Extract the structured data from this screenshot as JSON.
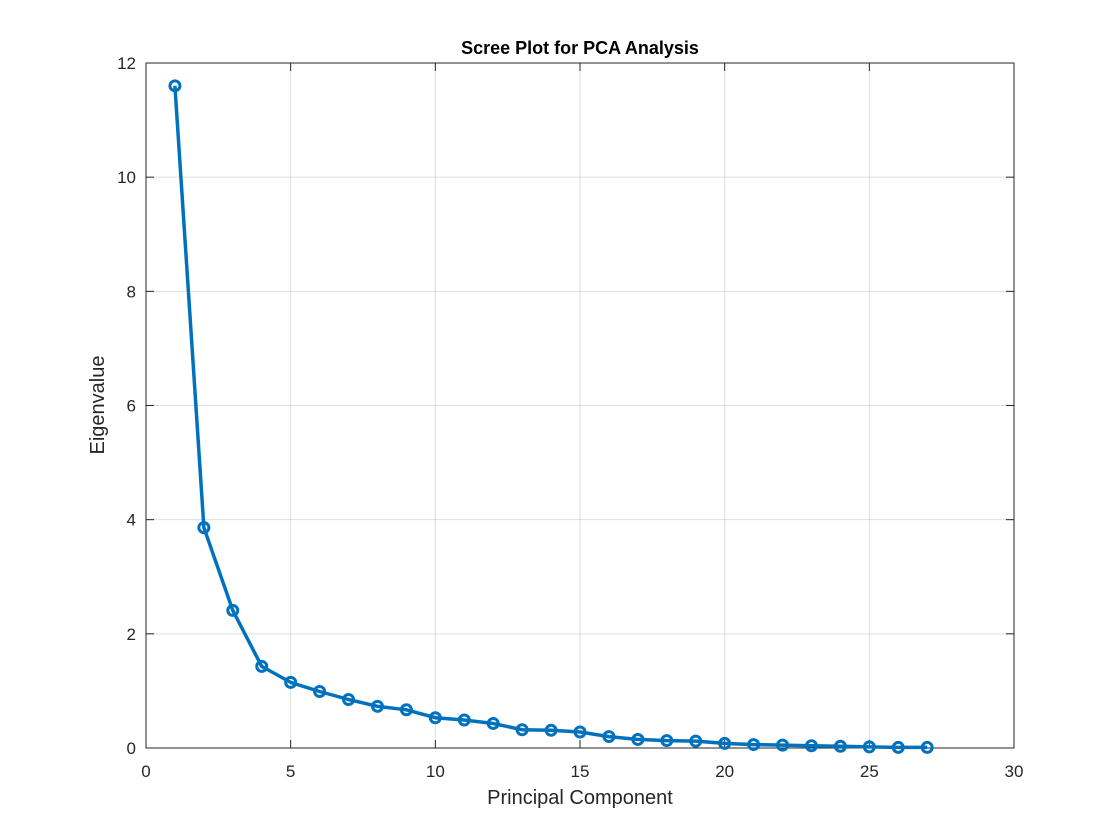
{
  "chart_data": {
    "type": "line",
    "title": "Scree Plot for PCA Analysis",
    "xlabel": "Principal Component",
    "ylabel": "Eigenvalue",
    "xlim": [
      0,
      30
    ],
    "ylim": [
      0,
      12
    ],
    "xticks": [
      0,
      5,
      10,
      15,
      20,
      25,
      30
    ],
    "yticks": [
      0,
      2,
      4,
      6,
      8,
      10,
      12
    ],
    "grid": true,
    "legend": "none",
    "series": [
      {
        "color": "#0072BD",
        "marker": "circle",
        "x": [
          1,
          2,
          3,
          4,
          5,
          6,
          7,
          8,
          9,
          10,
          11,
          12,
          13,
          14,
          15,
          16,
          17,
          18,
          19,
          20,
          21,
          22,
          23,
          24,
          25,
          26,
          27
        ],
        "y": [
          11.6,
          3.86,
          2.41,
          1.43,
          1.15,
          0.99,
          0.85,
          0.73,
          0.67,
          0.53,
          0.49,
          0.43,
          0.32,
          0.31,
          0.28,
          0.2,
          0.15,
          0.13,
          0.12,
          0.08,
          0.06,
          0.05,
          0.04,
          0.03,
          0.02,
          0.01,
          0.01
        ]
      }
    ]
  }
}
